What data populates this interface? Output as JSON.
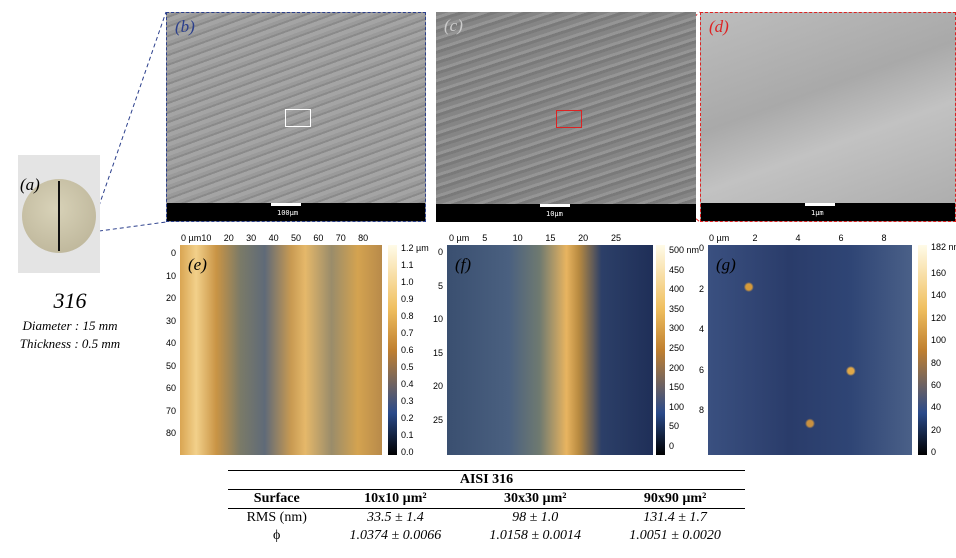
{
  "panel_a": {
    "label": "(a)",
    "title": "316",
    "diameter": "Diameter : 15 mm",
    "thickness": "Thickness : 0.5 mm"
  },
  "sem": [
    {
      "label": "(b)",
      "scale": "100µm"
    },
    {
      "label": "(c)",
      "scale": "10µm"
    },
    {
      "label": "(d)",
      "scale": "1µm"
    }
  ],
  "afm": [
    {
      "label": "(e)",
      "x_ticks": [
        "0 µm",
        "10",
        "20",
        "30",
        "40",
        "50",
        "60",
        "70",
        "80"
      ],
      "y_ticks": [
        "0",
        "10",
        "20",
        "30",
        "40",
        "50",
        "60",
        "70",
        "80"
      ],
      "colorbar_ticks": [
        "1.2 µm",
        "1.1",
        "1.0",
        "0.9",
        "0.8",
        "0.7",
        "0.6",
        "0.5",
        "0.4",
        "0.3",
        "0.2",
        "0.1",
        "0.0"
      ]
    },
    {
      "label": "(f)",
      "x_ticks": [
        "0 µm",
        "5",
        "10",
        "15",
        "20",
        "25"
      ],
      "y_ticks": [
        "0",
        "5",
        "10",
        "15",
        "20",
        "25"
      ],
      "colorbar_ticks": [
        "500 nm",
        "450",
        "400",
        "350",
        "300",
        "250",
        "200",
        "150",
        "100",
        "50",
        "0"
      ]
    },
    {
      "label": "(g)",
      "x_ticks": [
        "0 µm",
        "2",
        "4",
        "6",
        "8"
      ],
      "y_ticks": [
        "0",
        "2",
        "4",
        "6",
        "8"
      ],
      "colorbar_ticks": [
        "182 nm",
        "160",
        "140",
        "120",
        "100",
        "80",
        "60",
        "40",
        "20",
        "0"
      ]
    }
  ],
  "table": {
    "title": "AISI 316",
    "header": [
      "Surface",
      "10x10 µm²",
      "30x30 µm²",
      "90x90 µm²"
    ],
    "rows": [
      [
        "RMS (nm)",
        "33.5 ± 1.4",
        "98 ± 1.0",
        "131.4 ± 1.7"
      ],
      [
        "ϕ",
        "1.0374 ± 0.0066",
        "1.0158 ± 0.0014",
        "1.0051 ± 0.0020"
      ]
    ]
  }
}
